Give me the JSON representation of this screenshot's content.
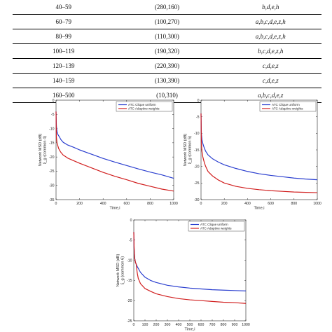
{
  "table": {
    "rows": [
      [
        "40–59",
        "(280,160)",
        "b,d,e,h"
      ],
      [
        "60–79",
        "(100,270)",
        "a,b,c,d,e,z,h"
      ],
      [
        "80–99",
        "(110,300)",
        "a,b,c,d,e,z,h"
      ],
      [
        "100–119",
        "(190,320)",
        "b,c,d,e,z,h"
      ],
      [
        "120–139",
        "(220,390)",
        "c,d,e,z"
      ],
      [
        "140–159",
        "(130,390)",
        "c,d,e,z"
      ],
      [
        "160–500",
        "(10,310)",
        "a,b,c,d,e,z"
      ]
    ]
  },
  "colors": {
    "series1": "#2b3fcf",
    "series2": "#d11f1f"
  },
  "chart_data": [
    {
      "type": "line",
      "xlabel": "Time,i",
      "ylabel": "Network MSD (dB)",
      "ylabel2": "ξ_g (common 4)",
      "xlim": [
        0,
        1000
      ],
      "ylim": [
        -35,
        0
      ],
      "xticks": [
        0,
        200,
        400,
        600,
        800,
        1000
      ],
      "yticks": [
        0,
        -5,
        -10,
        -15,
        -20,
        -25,
        -30,
        -35
      ],
      "legend": "top-right",
      "grid": false,
      "x": [
        0,
        3,
        8,
        15,
        22,
        30,
        40,
        60,
        100,
        150,
        200,
        300,
        400,
        500,
        600,
        700,
        800,
        900,
        1000
      ],
      "series": [
        {
          "name": "ATC Clique uniform",
          "values": [
            -4,
            -9,
            -11,
            -12,
            -12.5,
            -13,
            -13.8,
            -14.8,
            -15.8,
            -16.6,
            -17.5,
            -19.0,
            -20.5,
            -21.8,
            -23.0,
            -24.2,
            -25.3,
            -26.3,
            -27.5
          ]
        },
        {
          "name": "ATC Adaptive weights",
          "values": [
            -4,
            -13,
            -15,
            -16,
            -17,
            -17.6,
            -18.3,
            -19.3,
            -20.4,
            -21.3,
            -22.2,
            -23.8,
            -25.4,
            -26.8,
            -28.0,
            -29.3,
            -30.3,
            -31.3,
            -32.0
          ]
        }
      ]
    },
    {
      "type": "line",
      "xlabel": "Time,i",
      "ylabel": "Network MSD (dB)",
      "ylabel2": "ξ_g (common 5)",
      "xlim": [
        0,
        1000
      ],
      "ylim": [
        -30,
        0
      ],
      "xticks": [
        0,
        200,
        400,
        600,
        800,
        1000
      ],
      "yticks": [
        0,
        -5,
        -10,
        -15,
        -20,
        -25,
        -30
      ],
      "legend": "top-right",
      "grid": false,
      "x": [
        0,
        3,
        8,
        15,
        22,
        30,
        40,
        60,
        100,
        150,
        200,
        300,
        400,
        500,
        600,
        700,
        800,
        900,
        1000
      ],
      "series": [
        {
          "name": "ATC Clique uniform",
          "values": [
            -4,
            -10,
            -12,
            -13,
            -13.8,
            -14.6,
            -15.4,
            -16.5,
            -17.7,
            -18.7,
            -19.5,
            -20.6,
            -21.5,
            -22.2,
            -22.7,
            -23.1,
            -23.5,
            -23.8,
            -24.0
          ]
        },
        {
          "name": "ATC Adaptive weights",
          "values": [
            -4,
            -13,
            -15.5,
            -17,
            -18,
            -19,
            -20,
            -21.5,
            -22.9,
            -24.1,
            -25.0,
            -26.0,
            -26.6,
            -27.0,
            -27.3,
            -27.5,
            -27.7,
            -27.8,
            -27.9
          ]
        }
      ]
    },
    {
      "type": "line",
      "xlabel": "Time,i",
      "ylabel": "Network MSD (dB)",
      "ylabel2": "ξ_g (common 6)",
      "xlim": [
        0,
        1000
      ],
      "ylim": [
        -25,
        0
      ],
      "xticks": [
        0,
        100,
        200,
        300,
        400,
        500,
        600,
        700,
        800,
        900,
        1000
      ],
      "yticks": [
        0,
        -5,
        -10,
        -15,
        -20,
        -25
      ],
      "legend": "top-right",
      "grid": false,
      "x": [
        0,
        3,
        8,
        15,
        22,
        30,
        40,
        60,
        100,
        150,
        200,
        300,
        400,
        500,
        600,
        700,
        800,
        900,
        1000
      ],
      "series": [
        {
          "name": "ATC Clique uniform",
          "values": [
            -3,
            -7,
            -9.5,
            -10.5,
            -11,
            -11.5,
            -12,
            -13,
            -14.2,
            -15.0,
            -15.5,
            -16.2,
            -16.6,
            -16.9,
            -17.1,
            -17.3,
            -17.4,
            -17.5,
            -17.6
          ]
        },
        {
          "name": "ATC Adaptive weights",
          "values": [
            -3,
            -7,
            -9.5,
            -10.5,
            -11,
            -13,
            -14.5,
            -15.8,
            -17.0,
            -17.7,
            -18.3,
            -19.0,
            -19.5,
            -19.8,
            -20.0,
            -20.2,
            -20.4,
            -20.5,
            -20.7
          ]
        }
      ]
    }
  ]
}
